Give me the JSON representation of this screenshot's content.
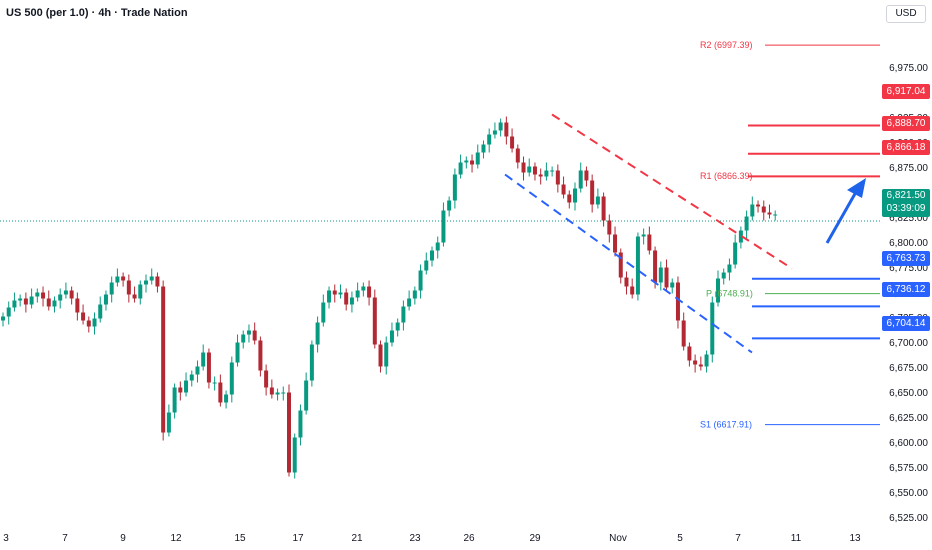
{
  "header": {
    "title": "US 500 (per 1.0) · 4h · Trade Nation",
    "currency": "USD"
  },
  "colors": {
    "bull": "#089981",
    "bear": "#b22833",
    "resistance": "#f23645",
    "support": "#2962ff",
    "pivot_line": "#4caf50"
  },
  "labels": {
    "r1": "6,866.18",
    "r2": "6,888.70",
    "r3": "6,917.04",
    "s1": "6,763.73",
    "s2": "6,736.12",
    "s3": "6,704.14",
    "current_price": "6,821.50",
    "countdown": "03:39:09"
  },
  "chart_data": {
    "type": "candlestick",
    "title": "US 500 (per 1.0) · 4h · Trade Nation",
    "ylim": [
      6512,
      6998
    ],
    "y_tick_labels": [
      "6,525.00",
      "6,550.00",
      "6,575.00",
      "6,600.00",
      "6,625.00",
      "6,650.00",
      "6,675.00",
      "6,700.00",
      "6,725.00",
      "6,750.00",
      "6,775.00",
      "6,800.00",
      "6,825.00",
      "6,850.00",
      "6,875.00",
      "6,900.00",
      "6,925.00",
      "6,950.00",
      "6,975.00"
    ],
    "y_tick_values": [
      6525,
      6550,
      6575,
      6600,
      6625,
      6650,
      6675,
      6700,
      6725,
      6750,
      6775,
      6800,
      6825,
      6850,
      6875,
      6900,
      6925,
      6950,
      6975
    ],
    "x_tick_labels": [
      "3",
      "7",
      "9",
      "12",
      "15",
      "17",
      "21",
      "23",
      "26",
      "29",
      "Nov",
      "5",
      "7",
      "11",
      "13"
    ],
    "candles_close": [
      6726,
      6735,
      6742,
      6744,
      6738,
      6746,
      6750,
      6744,
      6736,
      6742,
      6748,
      6752,
      6744,
      6730,
      6722,
      6716,
      6724,
      6738,
      6748,
      6760,
      6766,
      6762,
      6748,
      6744,
      6758,
      6762,
      6766,
      6756,
      6610,
      6630,
      6655,
      6650,
      6662,
      6668,
      6676,
      6690,
      6660,
      6660,
      6640,
      6648,
      6680,
      6700,
      6708,
      6712,
      6702,
      6672,
      6655,
      6648,
      6650,
      6650,
      6570,
      6605,
      6632,
      6662,
      6698,
      6720,
      6740,
      6752,
      6748,
      6750,
      6738,
      6745,
      6752,
      6756,
      6745,
      6698,
      6676,
      6700,
      6712,
      6720,
      6736,
      6744,
      6752,
      6772,
      6782,
      6792,
      6800,
      6832,
      6842,
      6868,
      6880,
      6882,
      6878,
      6890,
      6898,
      6908,
      6912,
      6920,
      6906,
      6894,
      6880,
      6870,
      6876,
      6868,
      6866,
      6872,
      6872,
      6858,
      6848,
      6840,
      6854,
      6872,
      6862,
      6838,
      6846,
      6822,
      6808,
      6790,
      6765,
      6756,
      6748,
      6806,
      6808,
      6792,
      6760,
      6775,
      6755,
      6760,
      6722,
      6696,
      6682,
      6678,
      6676,
      6688,
      6740,
      6764,
      6770,
      6778,
      6800,
      6812,
      6826,
      6838,
      6836,
      6830,
      6828,
      6828
    ],
    "overlays": {
      "pivot": {
        "label": "P",
        "value": 6748.91
      },
      "r1": {
        "label": "R1",
        "value": 6866.39
      },
      "r2": {
        "label": "R2",
        "value": 6997.39
      },
      "s1": {
        "label": "S1",
        "value": 6617.91
      },
      "resistance_levels": [
        6866.18,
        6888.7,
        6917.04
      ],
      "support_levels": [
        6763.73,
        6736.12,
        6704.14
      ],
      "current_price": 6821.5,
      "channel_top": [
        [
          29,
          6928
        ],
        [
          7,
          6774
        ]
      ],
      "channel_bottom": [
        [
          27,
          6868
        ],
        [
          7,
          6690
        ]
      ],
      "forecast_arrow": "up"
    }
  }
}
